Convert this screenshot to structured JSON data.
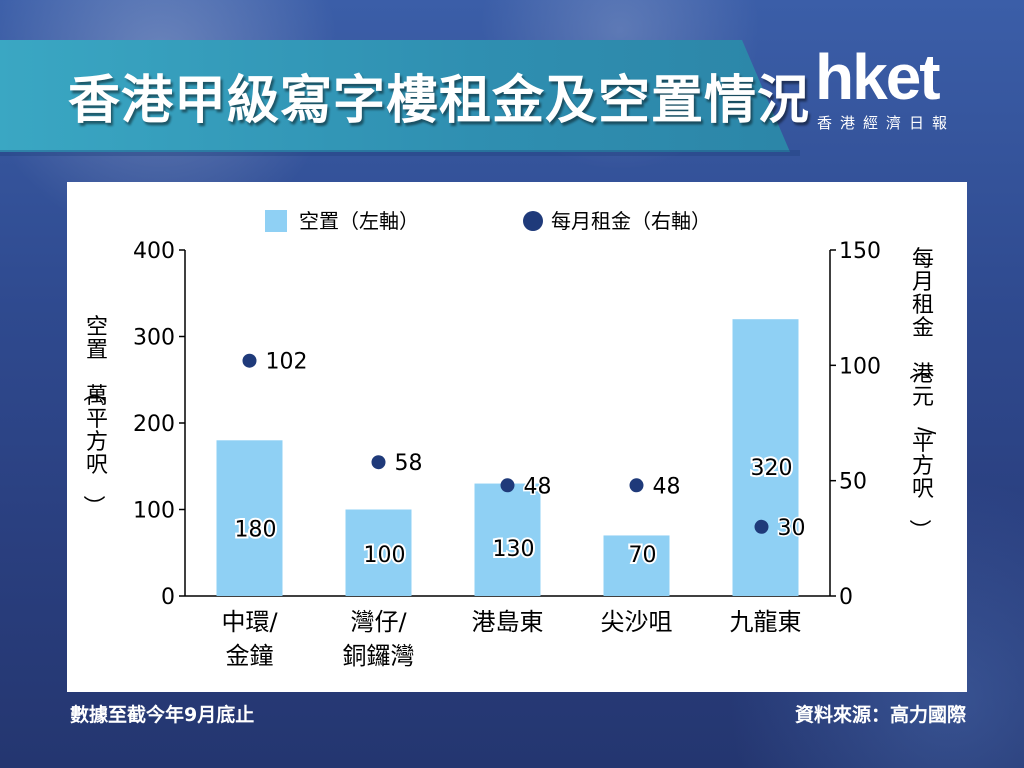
{
  "header": {
    "title": "香港甲級寫字樓租金及空置情況",
    "logo": "hket",
    "logo_sub": "香港經濟日報"
  },
  "footer": {
    "note": "數據至截今年9月底止",
    "source": "資料來源：高力國際"
  },
  "colors": {
    "bar": "#8fd0f4",
    "dot": "#1f3a7a",
    "band": "#3aa7c3"
  },
  "chart_data": {
    "type": "bar",
    "title": "",
    "categories": [
      [
        "中環/",
        "金鐘"
      ],
      [
        "灣仔/",
        "銅鑼灣"
      ],
      [
        "港島東"
      ],
      [
        "尖沙咀"
      ],
      [
        "九龍東"
      ]
    ],
    "series": [
      {
        "name": "空置（左軸）",
        "type": "bar",
        "axis": "left",
        "values": [
          180,
          100,
          130,
          70,
          320
        ]
      },
      {
        "name": "每月租金（右軸）",
        "type": "scatter",
        "axis": "right",
        "values": [
          102,
          58,
          48,
          48,
          30
        ]
      }
    ],
    "ylabel_left": "空置（萬平方呎）",
    "ylabel_right": "每月租金（港元/平方呎）",
    "ylim_left": [
      0,
      400
    ],
    "ylim_right": [
      0,
      150
    ],
    "yticks_left": [
      "0",
      "100",
      "200",
      "300",
      "400"
    ],
    "yticks_right": [
      "0",
      "50",
      "100",
      "150"
    ],
    "legend_position": "top-center",
    "grid": false
  }
}
